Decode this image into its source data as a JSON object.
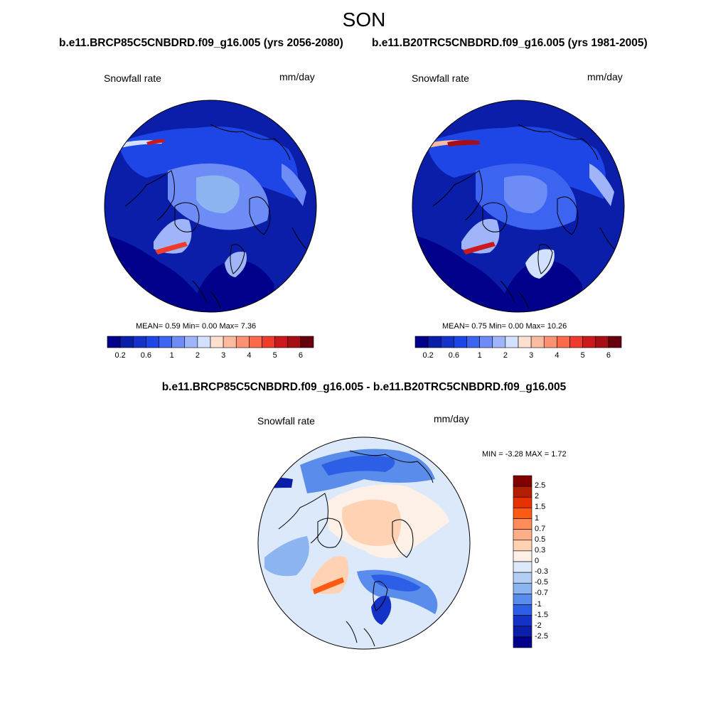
{
  "header": {
    "title": "SON",
    "left_run": "b.e11.BRCP85C5CNBDRD.f09_g16.005 (yrs 2056-2080)",
    "right_run": "b.e11.B20TRC5CNBDRD.f09_g16.005 (yrs 1981-2005)"
  },
  "panels": [
    {
      "variable": "Snowfall rate",
      "units": "mm/day",
      "stats": {
        "mean_label": "MEAN=",
        "mean": "0.59",
        "min_label": "Min=",
        "min": "0.00",
        "max_label": "Max=",
        "max": "7.36"
      }
    },
    {
      "variable": "Snowfall rate",
      "units": "mm/day",
      "stats": {
        "mean_label": "MEAN=",
        "mean": "0.75",
        "min_label": "Min=",
        "min": "0.00",
        "max_label": "Max=",
        "max": "10.26"
      }
    }
  ],
  "abs_colorbar": {
    "colors": [
      "#00008b",
      "#0a1eaa",
      "#1432c8",
      "#1e46e6",
      "#3c64f0",
      "#6e8cf5",
      "#a0b4fa",
      "#d2e1ff",
      "#fde0d0",
      "#fcbba1",
      "#fc9272",
      "#fb6a4a",
      "#ef3b2c",
      "#cb181d",
      "#a50f15",
      "#67000d"
    ],
    "tick_labels": [
      "0.2",
      "0.6",
      "1",
      "2",
      "3",
      "4",
      "5",
      "6"
    ]
  },
  "difference": {
    "title": "b.e11.BRCP85C5CNBDRD.f09_g16.005 - b.e11.B20TRC5CNBDRD.f09_g16.005",
    "variable": "Snowfall rate",
    "units": "mm/day",
    "minmax_text": "MIN =  -3.28 MAX =   1.72",
    "colorbar": {
      "colors": [
        "#800000",
        "#b41e00",
        "#e63200",
        "#ff5a14",
        "#ff8c5a",
        "#ffaf87",
        "#ffd2b4",
        "#fdf0e6",
        "#dce9fa",
        "#b4cdf5",
        "#8cb4f0",
        "#5a8ceb",
        "#2d5fe6",
        "#1432c8",
        "#0a1eaa",
        "#00008b"
      ],
      "tick_labels": [
        "2.5",
        "2",
        "1.5",
        "1",
        "0.7",
        "0.5",
        "0.3",
        "0",
        "-0.3",
        "-0.5",
        "-0.7",
        "-1",
        "-1.5",
        "-2",
        "-2.5"
      ]
    }
  }
}
